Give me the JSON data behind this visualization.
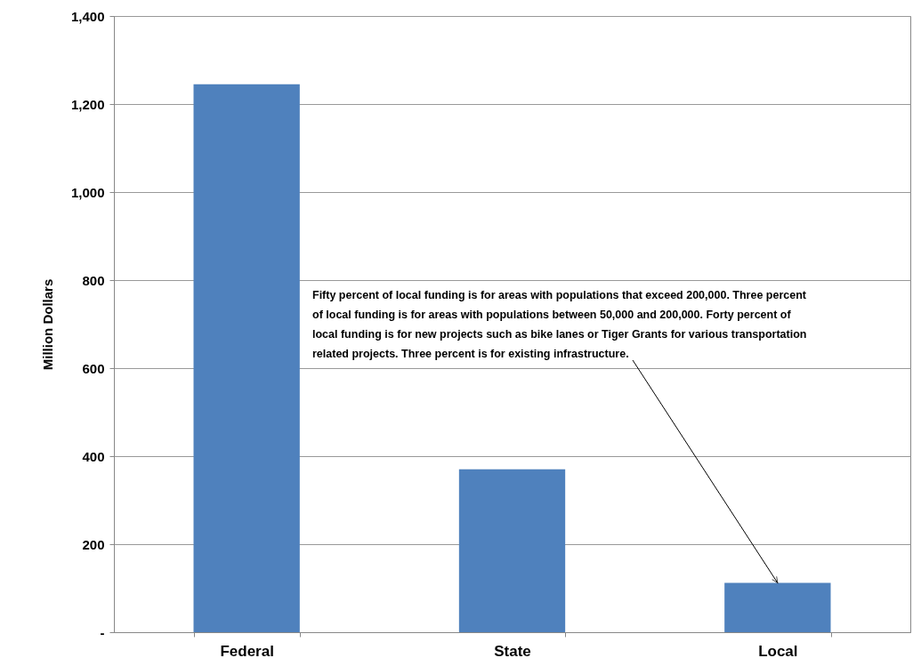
{
  "chart_data": {
    "type": "bar",
    "ylabel": "Million Dollars",
    "categories": [
      "Federal",
      "State",
      "Local"
    ],
    "values": [
      1245,
      370,
      112
    ],
    "color": "#4f81bd",
    "ylim": [
      0,
      1400
    ],
    "yticks": [
      {
        "value": 0,
        "label": "-"
      },
      200,
      400,
      600,
      800,
      {
        "value": 1000,
        "label": "1,000"
      },
      {
        "value": 1200,
        "label": "1,200"
      },
      {
        "value": 1400,
        "label": "1,400"
      }
    ],
    "grid": "y",
    "annotations": [
      {
        "text": "Fifty percent of local funding is for areas with populations that exceed 200,000. Three percent of local funding is for areas with populations between 50,000 and 200,000.  Forty percent of local funding is for new projects such as bike lanes or Tiger Grants for various transportation related projects.   Three percent is for existing infrastructure.",
        "x": "Local",
        "y": 112
      }
    ]
  }
}
